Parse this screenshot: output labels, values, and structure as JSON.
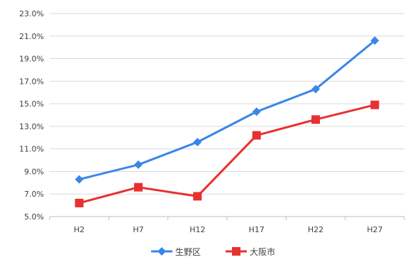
{
  "chart_data": {
    "type": "line",
    "categories": [
      "H2",
      "H7",
      "H12",
      "H17",
      "H22",
      "H27"
    ],
    "series": [
      {
        "name": "生野区",
        "values": [
          8.3,
          9.6,
          11.6,
          14.3,
          16.3,
          20.6
        ],
        "color": "#3a86e8",
        "marker": "diamond"
      },
      {
        "name": "大阪市",
        "values": [
          6.2,
          7.6,
          6.8,
          12.2,
          13.6,
          14.9
        ],
        "color": "#e8302f",
        "marker": "square"
      }
    ],
    "ylim": [
      5.0,
      23.0
    ],
    "ytick_step": 2.0,
    "ytick_labels": [
      "5.0%",
      "7.0%",
      "9.0%",
      "11.0%",
      "13.0%",
      "15.0%",
      "17.0%",
      "19.0%",
      "21.0%",
      "23.0%"
    ],
    "grid": true,
    "legend_position": "bottom",
    "title": "",
    "xlabel": "",
    "ylabel": ""
  }
}
